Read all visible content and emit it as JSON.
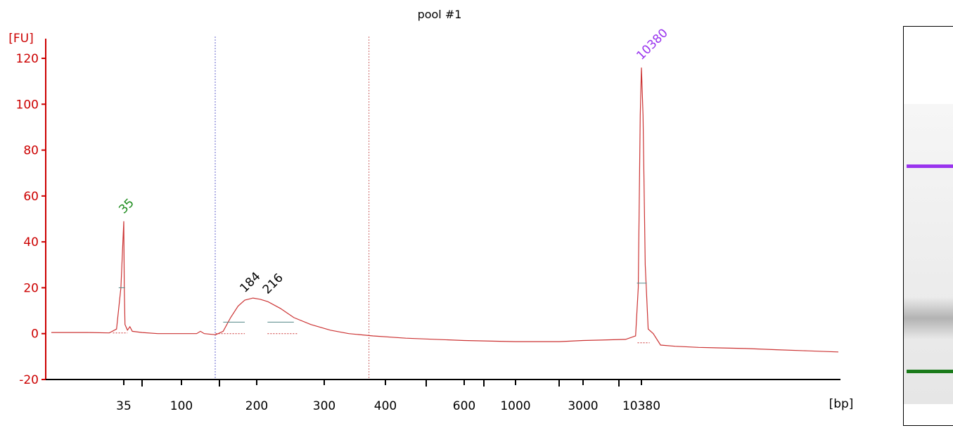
{
  "chart_data": {
    "type": "line",
    "title": "pool #1",
    "ylabel": "[FU]",
    "xlabel": "[bp]",
    "ylim": [
      -20,
      125
    ],
    "y_ticks": [
      "-20",
      "0",
      "20",
      "40",
      "60",
      "80",
      "100",
      "120"
    ],
    "x_ticks": [
      "35",
      "100",
      "200",
      "300",
      "400",
      "600",
      "1000",
      "3000",
      "10380"
    ],
    "x_minor_ticks": [
      50,
      150,
      500,
      700,
      2000,
      7000
    ],
    "region_lines": [
      150,
      380
    ],
    "series": [
      {
        "color": "#cc3333",
        "points": [
          [
            25,
            0.5
          ],
          [
            30,
            0.5
          ],
          [
            33,
            0.3
          ],
          [
            34,
            2
          ],
          [
            34.6,
            20
          ],
          [
            35,
            49
          ],
          [
            35.4,
            20
          ],
          [
            36,
            4
          ],
          [
            38,
            1.5
          ],
          [
            40,
            3
          ],
          [
            42,
            1
          ],
          [
            50,
            0.5
          ],
          [
            70,
            0
          ],
          [
            100,
            0
          ],
          [
            120,
            0
          ],
          [
            125,
            1
          ],
          [
            130,
            0
          ],
          [
            145,
            -0.5
          ],
          [
            155,
            1
          ],
          [
            165,
            7
          ],
          [
            175,
            12
          ],
          [
            184,
            14.6
          ],
          [
            195,
            15.5
          ],
          [
            205,
            15
          ],
          [
            216,
            14
          ],
          [
            235,
            11
          ],
          [
            255,
            7
          ],
          [
            280,
            4
          ],
          [
            310,
            1.5
          ],
          [
            340,
            0
          ],
          [
            380,
            -1
          ],
          [
            450,
            -2
          ],
          [
            600,
            -3
          ],
          [
            1000,
            -3.5
          ],
          [
            2000,
            -3.5
          ],
          [
            3000,
            -3
          ],
          [
            5000,
            -2.8
          ],
          [
            8000,
            -2.5
          ],
          [
            9500,
            -1
          ],
          [
            9900,
            20
          ],
          [
            10200,
            95
          ],
          [
            10380,
            116
          ],
          [
            10600,
            95
          ],
          [
            10900,
            30
          ],
          [
            11300,
            2
          ],
          [
            12000,
            0
          ],
          [
            13000,
            -5
          ],
          [
            15000,
            -5.5
          ],
          [
            20000,
            -6
          ],
          [
            30000,
            -6.5
          ],
          [
            40000,
            -7
          ],
          [
            50000,
            -7.5
          ],
          [
            60000,
            -8
          ]
        ]
      }
    ],
    "peaks": [
      {
        "label": "35",
        "x": 35,
        "y": 49,
        "color": "#1a8a1a"
      },
      {
        "label": "184",
        "x": 184,
        "y": 14.6,
        "color": "#000000"
      },
      {
        "label": "216",
        "x": 216,
        "y": 14,
        "color": "#000000"
      },
      {
        "label": "10380",
        "x": 10380,
        "y": 116,
        "color": "#9933ee"
      }
    ],
    "gel": {
      "bands": [
        {
          "name": "upper-marker",
          "color": "#9933ee"
        },
        {
          "name": "lower-marker",
          "color": "#1a7a1a"
        }
      ]
    }
  }
}
